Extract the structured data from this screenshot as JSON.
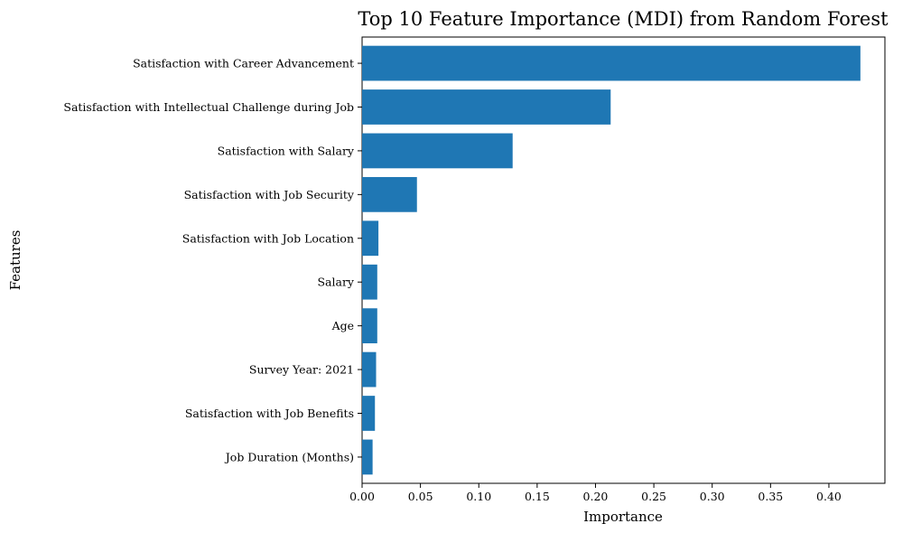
{
  "chart_data": {
    "type": "bar",
    "orientation": "horizontal",
    "title": "Top 10 Feature Importance (MDI) from Random Forest",
    "xlabel": "Importance",
    "ylabel": "Features",
    "categories": [
      "Satisfaction with Career Advancement",
      "Satisfaction with Intellectual Challenge during Job",
      "Satisfaction with Salary",
      "Satisfaction with Job Security",
      "Satisfaction with Job Location",
      "Salary",
      "Age",
      "Survey Year: 2021",
      "Satisfaction with Job Benefits",
      "Job Duration (Months)"
    ],
    "values": [
      0.427,
      0.213,
      0.129,
      0.047,
      0.014,
      0.013,
      0.013,
      0.012,
      0.011,
      0.009
    ],
    "xlim": [
      0,
      0.448
    ],
    "xticks": [
      0.0,
      0.05,
      0.1,
      0.15,
      0.2,
      0.25,
      0.3,
      0.35,
      0.4
    ],
    "xtick_labels": [
      "0.00",
      "0.05",
      "0.10",
      "0.15",
      "0.20",
      "0.25",
      "0.30",
      "0.35",
      "0.40"
    ],
    "bar_color": "#1f77b4",
    "grid": false,
    "legend": "none"
  }
}
